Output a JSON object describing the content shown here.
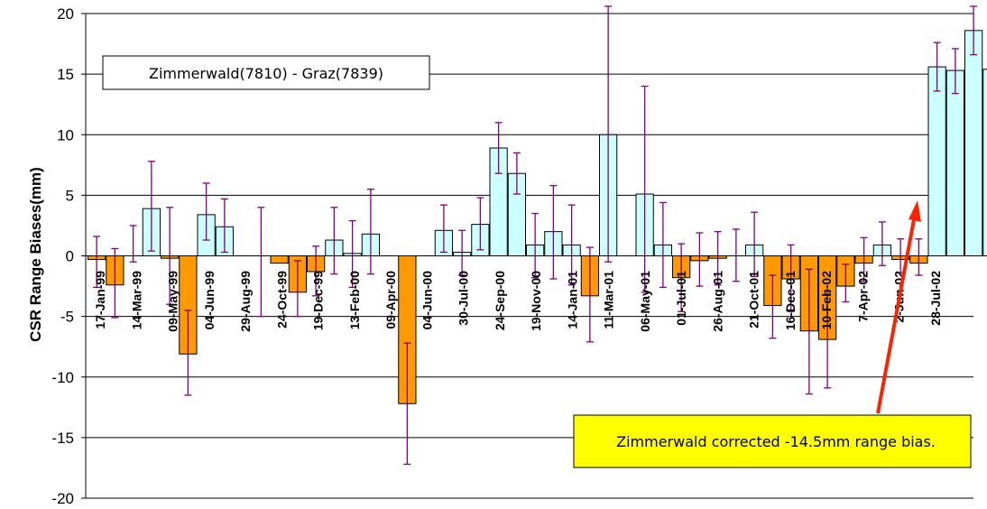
{
  "chart_data": {
    "type": "bar",
    "ylabel": "CSR Range Biases(mm)",
    "xlabel": "",
    "ylim": [
      -20,
      20
    ],
    "yticks": [
      -20,
      -15,
      -10,
      -5,
      0,
      5,
      10,
      15,
      20
    ],
    "grid": "horizontal",
    "legend_box": "Zimmerwald(7810) - Graz(7839)",
    "annotation": "Zimmerwald corrected -14.5mm range bias.",
    "colors": {
      "positive_bar": "#ccffff",
      "negative_bar": "#ff9900",
      "error_bar": "#800080",
      "arrow": "#ff2200",
      "annotation_fill": "#ffff00",
      "grid": "#000000"
    },
    "x_labels": [
      "17-Jan-99",
      "14-Mar-99",
      "09-May-99",
      "04-Jun-99",
      "29-Aug-99",
      "24-Oct-99",
      "19-Dec-99",
      "13-Feb-00",
      "09-Apr-00",
      "04-Jun-00",
      "30-Jul-00",
      "24-Sep-00",
      "19-Nov-00",
      "14-Jan-01",
      "11-Mar-01",
      "06-May-01",
      "01-Jul-01",
      "26-Aug-01",
      "21-Oct-01",
      "16-Dec-01",
      "10-Feb-02",
      "7-Apr-02",
      "2-Jun-02",
      "28-Jul-02"
    ],
    "values": [
      -0.3,
      -2.4,
      null,
      3.9,
      -0.2,
      -8.1,
      3.4,
      2.4,
      null,
      null,
      -0.6,
      -3.0,
      -1.3,
      1.3,
      0.2,
      1.8,
      null,
      -12.2,
      null,
      2.1,
      0.3,
      2.6,
      8.9,
      6.8,
      0.9,
      2.0,
      0.9,
      -3.3,
      10.0,
      null,
      5.1,
      0.9,
      -1.8,
      -0.4,
      -0.2,
      null,
      0.9,
      -4.1,
      -1.9,
      -6.2,
      -6.9,
      -2.5,
      -0.6,
      0.9,
      -0.3,
      -0.6,
      15.6,
      15.3,
      18.6,
      15.4
    ],
    "error_bars": [
      [
        -2.6,
        1.6
      ],
      [
        -5.1,
        0.6
      ],
      [
        -0.5,
        2.5
      ],
      [
        0.4,
        7.8
      ],
      [
        -4.0,
        4.0
      ],
      [
        -11.5,
        -4.5
      ],
      [
        1.3,
        6.0
      ],
      [
        0.3,
        4.7
      ],
      null,
      [
        -5.0,
        4.0
      ],
      null,
      [
        -5.0,
        -0.4
      ],
      [
        -3.3,
        0.8
      ],
      [
        -1.5,
        4.0
      ],
      [
        -2.6,
        2.9
      ],
      [
        -1.5,
        5.5
      ],
      null,
      [
        -17.2,
        -7.2
      ],
      null,
      [
        0.3,
        4.2
      ],
      [
        -1.6,
        2.1
      ],
      [
        0.5,
        4.8
      ],
      [
        6.8,
        11.0
      ],
      [
        5.1,
        8.5
      ],
      [
        -1.8,
        3.5
      ],
      [
        -1.9,
        5.8
      ],
      [
        -2.4,
        4.2
      ],
      [
        -7.1,
        0.7
      ],
      [
        -0.5,
        20.6
      ],
      null,
      [
        -3.0,
        14.0
      ],
      [
        -2.6,
        4.4
      ],
      [
        -4.6,
        1.0
      ],
      [
        -2.5,
        1.9
      ],
      [
        -2.4,
        2.0
      ],
      [
        -2.1,
        2.2
      ],
      [
        -1.7,
        3.6
      ],
      [
        -6.8,
        -1.6
      ],
      [
        -4.6,
        0.9
      ],
      [
        -11.4,
        -1.1
      ],
      [
        -10.9,
        -2.9
      ],
      [
        -3.8,
        -0.7
      ],
      [
        -2.1,
        1.5
      ],
      [
        -0.8,
        2.8
      ],
      [
        -1.4,
        1.4
      ],
      [
        -1.6,
        1.4
      ],
      [
        13.6,
        17.6
      ],
      [
        13.4,
        17.1
      ],
      [
        16.6,
        20.6
      ],
      [
        13.3,
        17.6
      ]
    ]
  }
}
